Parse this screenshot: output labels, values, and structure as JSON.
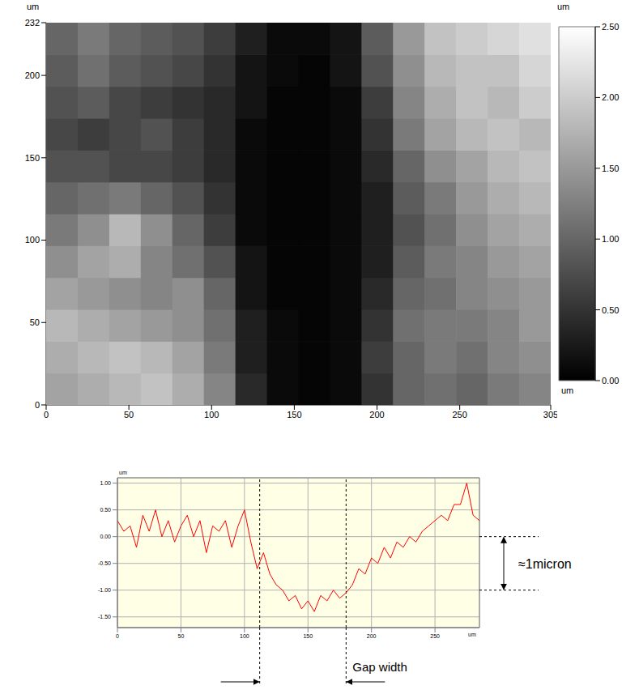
{
  "chart_data": [
    {
      "type": "heatmap",
      "x_unit": "um",
      "y_unit": "um",
      "xlim": [
        0,
        305
      ],
      "xticks": [
        0,
        50,
        100,
        150,
        200,
        250,
        305
      ],
      "ylim": [
        0,
        232
      ],
      "yticks": [
        0,
        50,
        100,
        150,
        200,
        232
      ],
      "cell_x": [
        9.53,
        28.59,
        47.66,
        66.72,
        85.78,
        104.84,
        123.91,
        142.97,
        162.03,
        181.09,
        200.16,
        219.22,
        238.28,
        257.34,
        276.41,
        295.47
      ],
      "cell_y": [
        9.67,
        29,
        48.33,
        67.67,
        87,
        106.33,
        125.67,
        145,
        164.33,
        183.67,
        203,
        222.33
      ],
      "cells": [
        [
          1.6,
          1.7,
          1.8,
          1.9,
          1.7,
          1.3,
          0.4,
          0.1,
          0.05,
          0.1,
          0.5,
          1.0,
          1.1,
          1.0,
          1.2,
          1.3
        ],
        [
          1.7,
          1.8,
          1.9,
          1.8,
          1.6,
          1.2,
          0.3,
          0.1,
          0.05,
          0.1,
          0.6,
          1.0,
          1.2,
          1.1,
          1.3,
          1.4
        ],
        [
          1.8,
          1.7,
          1.6,
          1.5,
          1.4,
          1.1,
          0.3,
          0.1,
          0.05,
          0.1,
          0.5,
          1.1,
          1.2,
          1.2,
          1.3,
          1.5
        ],
        [
          1.6,
          1.5,
          1.4,
          1.3,
          1.4,
          1.0,
          0.2,
          0.05,
          0.05,
          0.1,
          0.4,
          1.0,
          1.1,
          1.3,
          1.4,
          1.5
        ],
        [
          1.4,
          1.6,
          1.7,
          1.3,
          1.1,
          0.8,
          0.2,
          0.05,
          0.05,
          0.1,
          0.3,
          0.9,
          1.2,
          1.3,
          1.5,
          1.6
        ],
        [
          1.2,
          1.4,
          1.8,
          1.4,
          1.0,
          0.6,
          0.1,
          0.05,
          0.05,
          0.1,
          0.3,
          0.8,
          1.1,
          1.4,
          1.6,
          1.7
        ],
        [
          1.0,
          1.1,
          1.2,
          1.0,
          0.8,
          0.5,
          0.1,
          0.05,
          0.05,
          0.1,
          0.3,
          0.9,
          1.2,
          1.5,
          1.7,
          1.8
        ],
        [
          0.8,
          0.8,
          0.7,
          0.7,
          0.6,
          0.4,
          0.1,
          0.05,
          0.05,
          0.1,
          0.4,
          1.0,
          1.4,
          1.6,
          1.8,
          1.9
        ],
        [
          0.7,
          0.6,
          0.7,
          0.8,
          0.6,
          0.4,
          0.1,
          0.05,
          0.05,
          0.1,
          0.5,
          1.2,
          1.6,
          1.8,
          1.9,
          1.8
        ],
        [
          0.8,
          0.9,
          0.7,
          0.6,
          0.5,
          0.4,
          0.2,
          0.05,
          0.05,
          0.1,
          0.6,
          1.3,
          1.7,
          1.9,
          1.8,
          2.0
        ],
        [
          0.9,
          1.1,
          0.9,
          0.8,
          0.7,
          0.5,
          0.2,
          0.1,
          0.05,
          0.2,
          0.8,
          1.4,
          1.8,
          1.9,
          1.9,
          2.1
        ],
        [
          1.0,
          1.2,
          1.0,
          0.9,
          0.8,
          0.6,
          0.3,
          0.1,
          0.1,
          0.2,
          0.9,
          1.5,
          1.9,
          2.0,
          2.1,
          2.2
        ]
      ],
      "colorbar": {
        "unit": "um",
        "range": [
          0,
          2.5
        ],
        "ticks": [
          {
            "value": 0,
            "label": "0.00"
          },
          {
            "value": 0.5,
            "label": "0.50"
          },
          {
            "value": 1,
            "label": "1.00"
          },
          {
            "value": 1.5,
            "label": "1.50"
          },
          {
            "value": 2,
            "label": "2.00"
          },
          {
            "value": 2.5,
            "label": "2.50"
          }
        ]
      }
    },
    {
      "type": "line",
      "x_unit": "um",
      "y_unit": "um",
      "color": "#ff0000",
      "grid": true,
      "x": [
        0,
        5,
        10,
        15,
        20,
        25,
        30,
        35,
        40,
        45,
        50,
        55,
        60,
        65,
        70,
        75,
        80,
        85,
        90,
        95,
        100,
        105,
        110,
        115,
        120,
        125,
        130,
        135,
        140,
        145,
        150,
        155,
        160,
        165,
        170,
        175,
        180,
        185,
        190,
        195,
        200,
        205,
        210,
        215,
        220,
        225,
        230,
        235,
        240,
        245,
        250,
        255,
        260,
        265,
        270,
        275,
        280,
        285
      ],
      "values": [
        0.3,
        0.1,
        0.2,
        -0.2,
        0.4,
        0.1,
        0.5,
        0.0,
        0.3,
        -0.1,
        0.2,
        0.4,
        0.0,
        0.3,
        -0.3,
        0.2,
        0.1,
        0.3,
        -0.2,
        0.2,
        0.5,
        -0.1,
        -0.6,
        -0.3,
        -0.7,
        -0.9,
        -1.0,
        -1.2,
        -1.1,
        -1.35,
        -1.2,
        -1.4,
        -1.1,
        -1.2,
        -1.0,
        -1.15,
        -1.05,
        -0.9,
        -0.6,
        -0.7,
        -0.4,
        -0.5,
        -0.2,
        -0.4,
        -0.1,
        -0.2,
        0.0,
        -0.1,
        0.1,
        0.2,
        0.3,
        0.4,
        0.3,
        0.6,
        0.6,
        1.0,
        0.4,
        0.3
      ],
      "xlim": [
        0,
        285
      ],
      "xticks": [
        0,
        50,
        100,
        150,
        200,
        250
      ],
      "ylim": [
        -1.7,
        1.1
      ],
      "yticks": [
        {
          "value": -1.5,
          "label": "-1.50"
        },
        {
          "value": -1,
          "label": "-1.00"
        },
        {
          "value": -0.5,
          "label": "-0.50"
        },
        {
          "value": 0,
          "label": "0.00"
        },
        {
          "value": 0.5,
          "label": "0.50"
        },
        {
          "value": 1,
          "label": "1.00"
        }
      ],
      "annotations": [
        {
          "text": "≈1micron",
          "y": [
            0,
            -1
          ]
        },
        {
          "text": "Gap width",
          "x": [
            112,
            180
          ]
        }
      ]
    }
  ]
}
